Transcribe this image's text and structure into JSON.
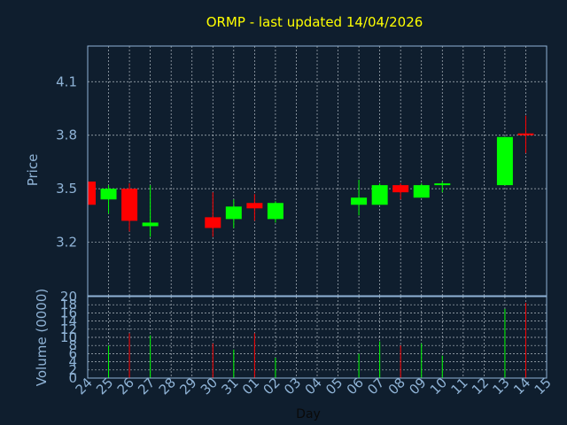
{
  "chart_data": {
    "type": "candlestick",
    "title": "ORMP - last updated 14/04/2026",
    "xlabel": "Day",
    "x_ticks": [
      "24",
      "25",
      "26",
      "27",
      "28",
      "29",
      "30",
      "31",
      "01",
      "02",
      "03",
      "04",
      "05",
      "06",
      "07",
      "08",
      "09",
      "10",
      "11",
      "12",
      "13",
      "14",
      "15"
    ],
    "price_panel": {
      "ylabel": "Price",
      "ylim": [
        2.9,
        4.3
      ],
      "y_ticks": [
        3.2,
        3.5,
        3.8,
        4.1
      ],
      "y_tick_labels": [
        "3.2",
        "3.5",
        "3.8",
        "4.1"
      ],
      "grid": true
    },
    "volume_panel": {
      "ylabel": "Volume (0000)",
      "ylim": [
        0,
        20
      ],
      "y_ticks": [
        0,
        2,
        4,
        6,
        8,
        10,
        12,
        14,
        16,
        18,
        20
      ],
      "y_tick_labels": [
        "0",
        "2",
        "4",
        "6",
        "8",
        "10",
        "12",
        "14",
        "16",
        "18",
        "20"
      ],
      "grid": true
    },
    "colors": {
      "up": "#00ff00",
      "down": "#ff0000",
      "background": "#0f1e2e",
      "title": "#ffff00",
      "axis": "#8fb3d6"
    },
    "candles": [
      {
        "day": "24",
        "open": 3.54,
        "high": 3.54,
        "low": 3.41,
        "close": 3.41,
        "volume": 0
      },
      {
        "day": "25",
        "open": 3.44,
        "high": 3.52,
        "low": 3.36,
        "close": 3.5,
        "volume": 8
      },
      {
        "day": "26",
        "open": 3.5,
        "high": 3.53,
        "low": 3.26,
        "close": 3.32,
        "volume": 11
      },
      {
        "day": "27",
        "open": 3.29,
        "high": 3.52,
        "low": 3.23,
        "close": 3.31,
        "volume": 10.5
      },
      {
        "day": "30",
        "open": 3.34,
        "high": 3.48,
        "low": 3.23,
        "close": 3.28,
        "volume": 8.5
      },
      {
        "day": "31",
        "open": 3.33,
        "high": 3.44,
        "low": 3.28,
        "close": 3.4,
        "volume": 7
      },
      {
        "day": "01",
        "open": 3.42,
        "high": 3.47,
        "low": 3.32,
        "close": 3.39,
        "volume": 11
      },
      {
        "day": "02",
        "open": 3.33,
        "high": 3.43,
        "low": 3.31,
        "close": 3.42,
        "volume": 5
      },
      {
        "day": "06",
        "open": 3.41,
        "high": 3.55,
        "low": 3.35,
        "close": 3.45,
        "volume": 6
      },
      {
        "day": "07",
        "open": 3.41,
        "high": 3.53,
        "low": 3.41,
        "close": 3.52,
        "volume": 9
      },
      {
        "day": "08",
        "open": 3.52,
        "high": 3.53,
        "low": 3.44,
        "close": 3.48,
        "volume": 8
      },
      {
        "day": "09",
        "open": 3.45,
        "high": 3.53,
        "low": 3.45,
        "close": 3.52,
        "volume": 8.5
      },
      {
        "day": "10",
        "open": 3.52,
        "high": 3.54,
        "low": 3.48,
        "close": 3.53,
        "volume": 5.5
      },
      {
        "day": "13",
        "open": 3.52,
        "high": 3.79,
        "low": 3.52,
        "close": 3.79,
        "volume": 17
      },
      {
        "day": "14",
        "open": 3.81,
        "high": 3.91,
        "low": 3.7,
        "close": 3.8,
        "volume": 18.5
      }
    ]
  }
}
